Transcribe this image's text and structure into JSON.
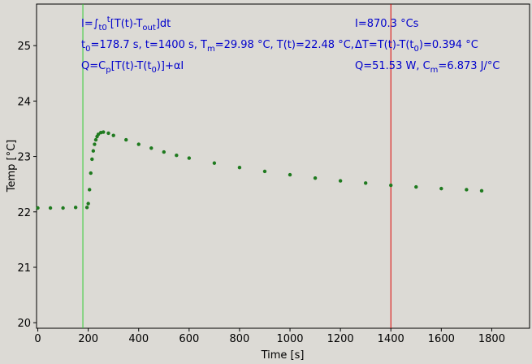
{
  "chart_data": {
    "type": "scatter",
    "xlabel": "Time [s]",
    "ylabel": "Temp [°C]",
    "xlim": [
      -5,
      1950
    ],
    "ylim": [
      19.9,
      25.75
    ],
    "xticks": [
      "0",
      "200",
      "400",
      "600",
      "800",
      "1000",
      "1200",
      "1400",
      "1600",
      "1800"
    ],
    "yticks": [
      "20",
      "21",
      "22",
      "23",
      "24",
      "25"
    ],
    "grid": false,
    "series": [
      {
        "color": "#1f7a1f",
        "x": [
          0,
          50,
          100,
          150,
          195,
          200,
          205,
          210,
          215,
          220,
          225,
          230,
          235,
          240,
          250,
          260,
          280,
          300,
          350,
          400,
          450,
          500,
          550,
          600,
          700,
          800,
          900,
          1000,
          1100,
          1200,
          1300,
          1400,
          1500,
          1600,
          1700,
          1760
        ],
        "y": [
          22.07,
          22.07,
          22.07,
          22.08,
          22.08,
          22.15,
          22.4,
          22.7,
          22.95,
          23.1,
          23.22,
          23.3,
          23.36,
          23.4,
          23.43,
          23.44,
          23.42,
          23.38,
          23.3,
          23.22,
          23.15,
          23.08,
          23.02,
          22.97,
          22.88,
          22.8,
          22.73,
          22.67,
          22.61,
          22.56,
          22.52,
          22.48,
          22.45,
          22.42,
          22.4,
          22.38
        ]
      }
    ],
    "vlines": [
      {
        "x": 178.7,
        "color": "#33cc33"
      },
      {
        "x": 1400,
        "color": "#dd0000"
      }
    ]
  },
  "annotations": {
    "left": {
      "line1": {
        "a": "I=∫",
        "b": "t0",
        "c": "t",
        "d": "[T(t)-T",
        "e": "out",
        "f": "]dt"
      },
      "line2": {
        "a": "t",
        "b": "0",
        "c": "=178.7 s,   t=1400 s,   T",
        "d": "m",
        "e": "=29.98 °C,  T(t)=22.48 °C,"
      },
      "line3": {
        "a": "Q=C",
        "b": "p",
        "c": "[T(t)-T(t",
        "d": "0",
        "e": ")]+αI"
      }
    },
    "right": {
      "line1": "I=870.3 °Cs",
      "line2": {
        "a": "ΔT=T(t)-T(t",
        "b": "0",
        "c": ")=0.394 °C"
      },
      "line3": {
        "a": "Q=51.53 W,   C",
        "b": "m",
        "c": "=6.873 J/°C"
      }
    }
  },
  "colors": {
    "background": "#dcdad5",
    "annotation": "#0000cc"
  }
}
